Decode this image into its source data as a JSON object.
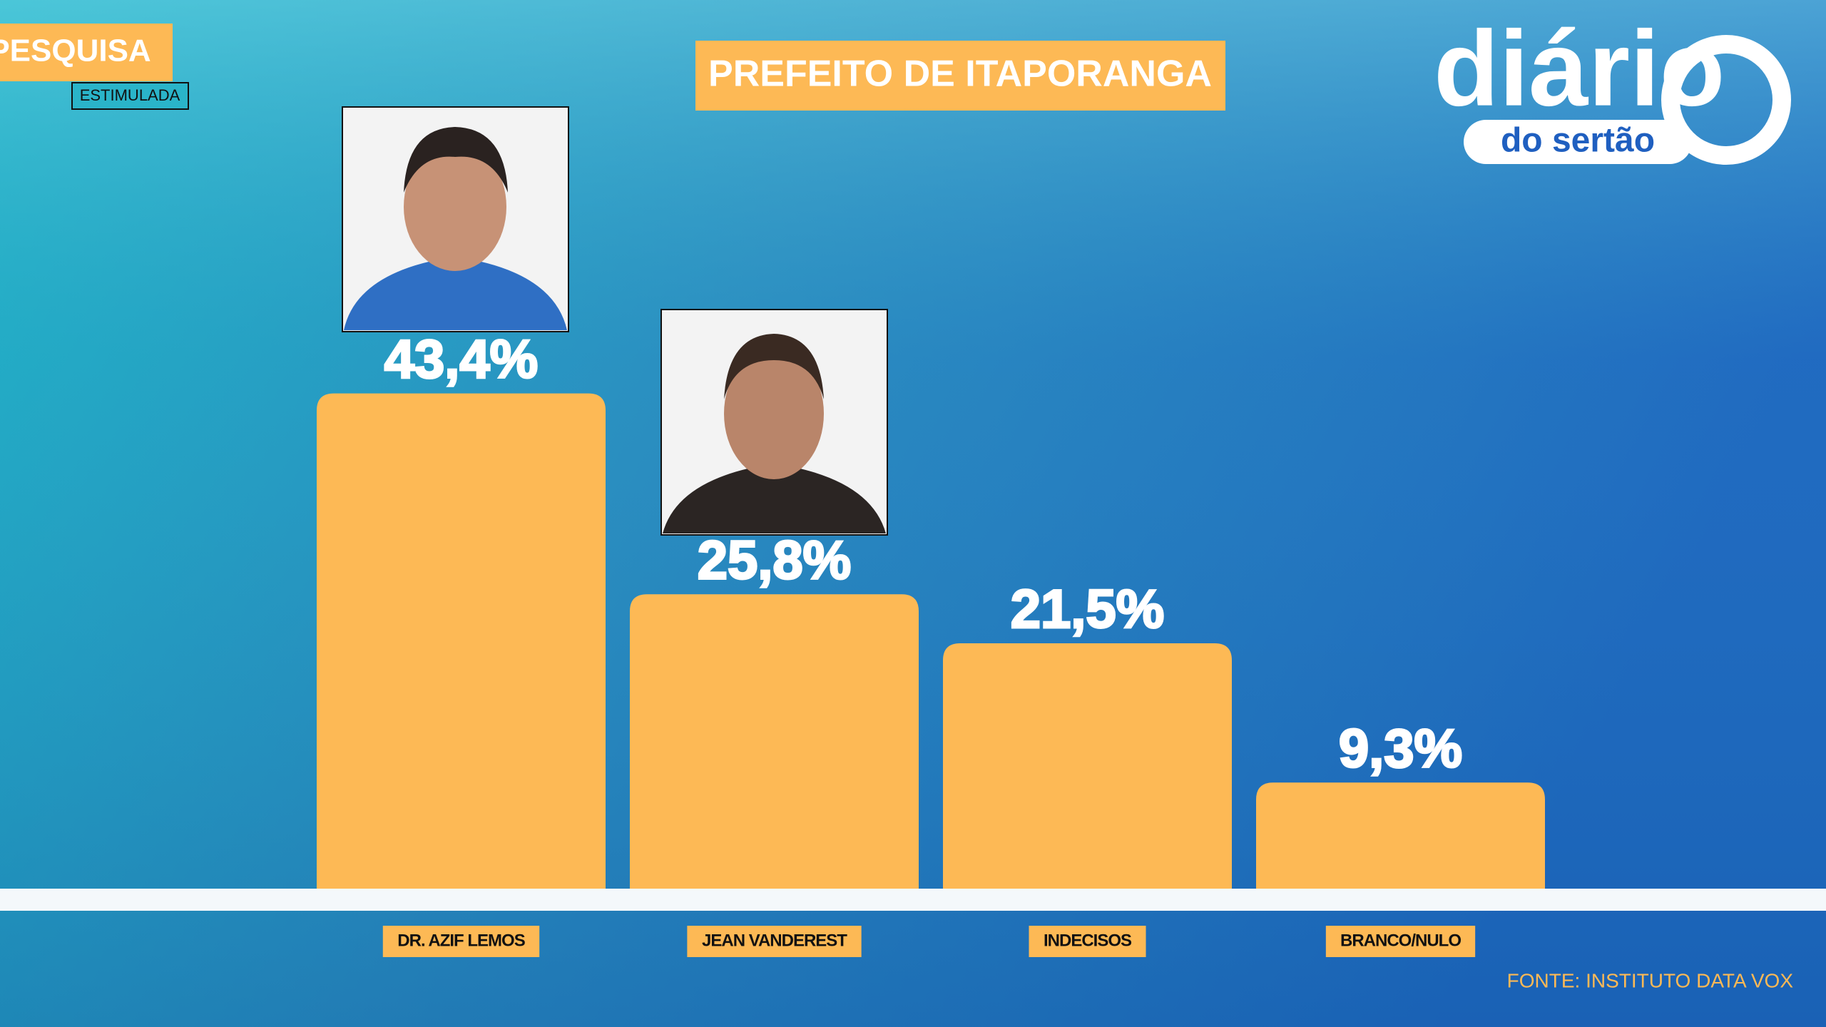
{
  "chart_data": {
    "type": "bar",
    "title": "PREFEITO DE ITAPORANGA",
    "badge": "PESQUISA",
    "subtitle": "ESTIMULADA",
    "source": "FONTE: INSTITUTO DATA VOX",
    "logo": {
      "main": "diário",
      "sub": "do sertão"
    },
    "categories": [
      "DR. AZIF LEMOS",
      "JEAN VANDEREST",
      "INDECISOS",
      "BRANCO/NULO"
    ],
    "values": [
      43.4,
      25.8,
      21.5,
      9.3
    ],
    "value_labels": [
      "43,4%",
      "25,8%",
      "21,5%",
      "9,3%"
    ],
    "color": "#fdb955"
  }
}
